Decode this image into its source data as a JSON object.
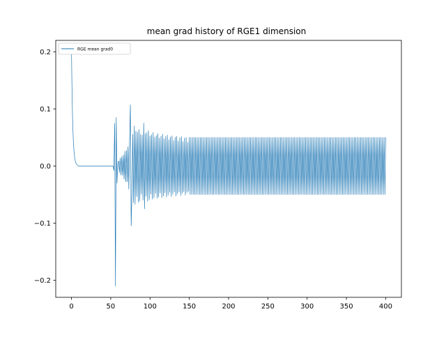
{
  "chart_data": {
    "type": "line",
    "title": "mean grad history of RGE1 dimension",
    "xlabel": "",
    "ylabel": "",
    "xlim": [
      -20,
      420
    ],
    "ylim": [
      -0.23,
      0.22
    ],
    "x_ticks": [
      0,
      50,
      100,
      150,
      200,
      250,
      300,
      350,
      400
    ],
    "y_ticks": [
      -0.2,
      -0.1,
      0.0,
      0.1,
      0.2
    ],
    "y_tick_labels": [
      "−0.2",
      "−0.1",
      "0.0",
      "0.1",
      "0.2"
    ],
    "grid": false,
    "legend_position": "top-left",
    "series": [
      {
        "name": "RGE mean grad0",
        "color": "#1f77b4",
        "x_range": [
          0,
          400
        ],
        "description_points": [
          [
            0,
            0.21
          ],
          [
            1,
            0.15
          ],
          [
            2,
            0.09
          ],
          [
            3,
            0.05
          ],
          [
            4,
            0.025
          ],
          [
            5,
            0.01
          ],
          [
            6,
            0.003
          ],
          [
            8,
            0.0
          ],
          [
            50,
            0.0
          ],
          [
            54,
            -0.008
          ],
          [
            55,
            0.075
          ],
          [
            56,
            -0.21
          ],
          [
            57,
            0.085
          ],
          [
            58,
            -0.03
          ],
          [
            59,
            0.005
          ],
          [
            75,
            0.107
          ],
          [
            76,
            -0.105
          ],
          [
            92,
            0.075
          ],
          [
            93,
            -0.075
          ],
          [
            150,
            0.05
          ],
          [
            400,
            0.05
          ]
        ],
        "envelope": [
          [
            60,
            0.01
          ],
          [
            65,
            0.02
          ],
          [
            70,
            0.03
          ],
          [
            75,
            0.05
          ],
          [
            80,
            0.07
          ],
          [
            85,
            0.065
          ],
          [
            90,
            0.06
          ],
          [
            95,
            0.065
          ],
          [
            100,
            0.06
          ],
          [
            110,
            0.057
          ],
          [
            120,
            0.055
          ],
          [
            130,
            0.053
          ],
          [
            140,
            0.052
          ],
          [
            150,
            0.05
          ],
          [
            400,
            0.05
          ]
        ]
      }
    ]
  },
  "colors": {
    "line": "#1f77b4",
    "axes": "#000000",
    "background": "#ffffff"
  }
}
